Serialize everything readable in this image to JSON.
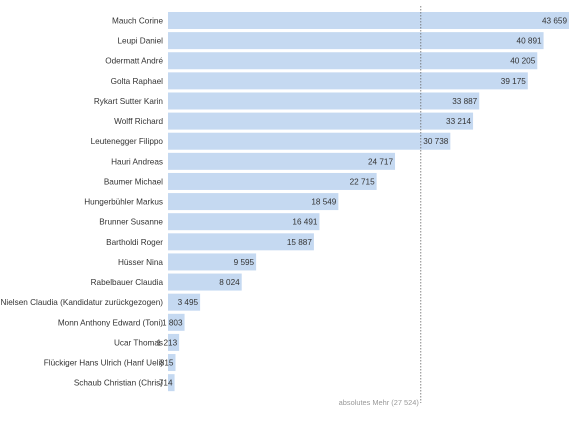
{
  "chart_data": {
    "type": "bar",
    "orientation": "horizontal",
    "categories": [
      "Mauch Corine",
      "Leupi Daniel",
      "Odermatt André",
      "Golta Raphael",
      "Rykart Sutter Karin",
      "Wolff Richard",
      "Leutenegger Filippo",
      "Hauri Andreas",
      "Baumer Michael",
      "Hungerbühler Markus",
      "Brunner Susanne",
      "Bartholdi Roger",
      "Hüsser Nina",
      "Rabelbauer Claudia",
      "Nielsen Claudia (Kandidatur zurückgezogen)",
      "Monn Anthony Edward (Toni)",
      "Ucar Thomas",
      "Flückiger Hans Ulrich (Hanf Ueli)",
      "Schaub Christian (Chris)"
    ],
    "values": [
      43659,
      40891,
      40205,
      39175,
      33887,
      33214,
      30738,
      24717,
      22715,
      18549,
      16491,
      15887,
      9595,
      8024,
      3495,
      1803,
      1213,
      815,
      714
    ],
    "value_labels": [
      "43 659",
      "40 891",
      "40 205",
      "39 175",
      "33 887",
      "33 214",
      "30 738",
      "24 717",
      "22 715",
      "18 549",
      "16 491",
      "15 887",
      "9 595",
      "8 024",
      "3 495",
      "1 803",
      "1 213",
      "815",
      "714"
    ],
    "reference_line": {
      "value": 27524,
      "label": "absolutes Mehr (27 524)"
    },
    "xlim": [
      0,
      43659
    ],
    "grid": false,
    "colors": {
      "bar": "#c5d9f1",
      "text": "#333333",
      "reference": "#666666",
      "note": "#999999"
    }
  }
}
